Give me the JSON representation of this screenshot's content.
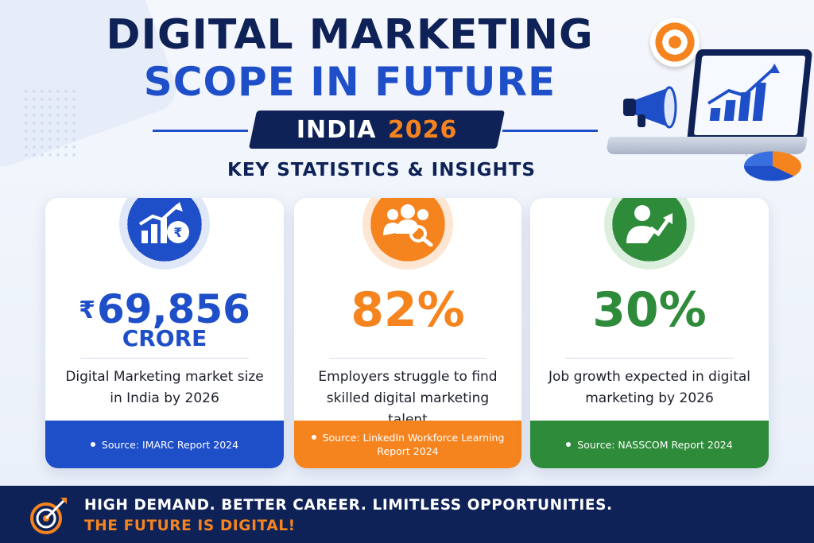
{
  "header": {
    "title_line1": "DIGITAL MARKETING",
    "title_line2": "SCOPE IN FUTURE",
    "banner_region": "INDIA",
    "banner_year": "2026",
    "subtitle": "KEY STATISTICS & INSIGHTS"
  },
  "cards": [
    {
      "icon": "rupee-growth-icon",
      "currency": "₹",
      "value": "69,856",
      "unit": "CRORE",
      "description": "Digital Marketing market size in India by 2026",
      "source": "Source: IMARC Report 2024",
      "color": "#1e4fc8"
    },
    {
      "icon": "talent-search-icon",
      "value": "82%",
      "description": "Employers struggle to find skilled digital marketing talent",
      "source": "Source: LinkedIn Workforce Learning Report 2024",
      "color": "#f5841f"
    },
    {
      "icon": "job-growth-icon",
      "value": "30%",
      "description": "Job growth expected in digital marketing by 2026",
      "source": "Source: NASSCOM Report 2024",
      "color": "#2e8b3a"
    }
  ],
  "footer": {
    "line1": "HIGH DEMAND. BETTER CAREER. LIMITLESS OPPORTUNITIES.",
    "line2": "THE FUTURE IS DIGITAL!",
    "icon": "target-arrow-icon"
  },
  "colors": {
    "navy": "#0f2257",
    "blue": "#1e4fc8",
    "orange": "#f5841f",
    "green": "#2e8b3a"
  }
}
